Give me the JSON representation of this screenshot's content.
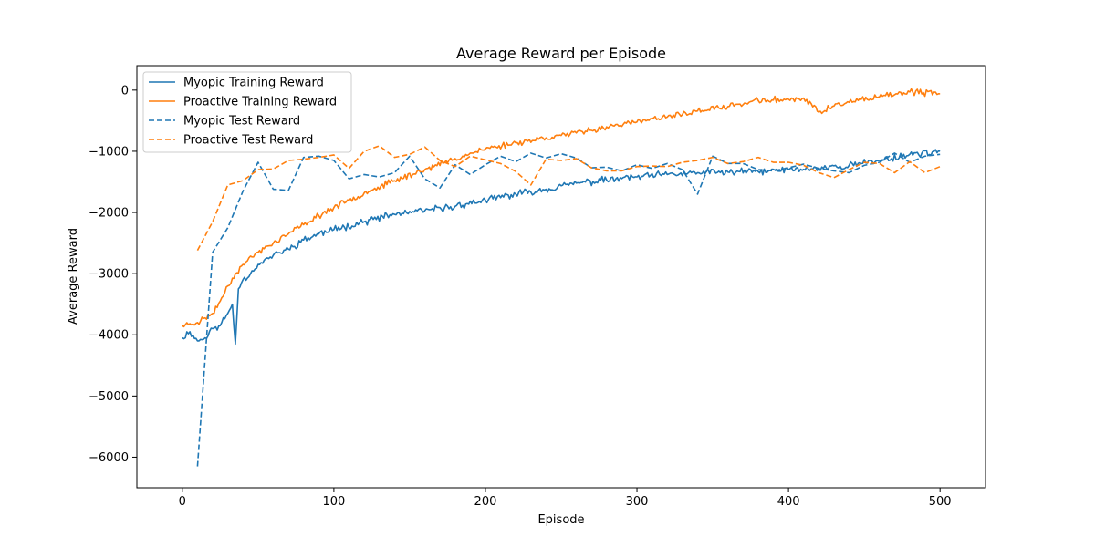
{
  "chart_data": {
    "type": "line",
    "title": "Average Reward per Episode",
    "xlabel": "Episode",
    "ylabel": "Average Reward",
    "xlim": [
      -30,
      530
    ],
    "ylim": [
      -6500,
      400
    ],
    "xticks": [
      0,
      100,
      200,
      300,
      400,
      500
    ],
    "yticks": [
      -6000,
      -5000,
      -4000,
      -3000,
      -2000,
      -1000,
      0
    ],
    "ytick_labels": [
      "−6000",
      "−5000",
      "−4000",
      "−3000",
      "−2000",
      "−1000",
      "0"
    ],
    "grid": false,
    "legend_position": "top-left",
    "series": [
      {
        "name": "Myopic Training Reward",
        "color": "#1f77b4",
        "dash": "solid",
        "kind": "train",
        "noise": 70,
        "seed": 11,
        "points": [
          [
            0,
            -4050
          ],
          [
            5,
            -3950
          ],
          [
            10,
            -4100
          ],
          [
            15,
            -4050
          ],
          [
            20,
            -3900
          ],
          [
            25,
            -3850
          ],
          [
            30,
            -3650
          ],
          [
            33,
            -3500
          ],
          [
            35,
            -4150
          ],
          [
            37,
            -3250
          ],
          [
            40,
            -3100
          ],
          [
            45,
            -3000
          ],
          [
            50,
            -2850
          ],
          [
            60,
            -2700
          ],
          [
            70,
            -2600
          ],
          [
            80,
            -2450
          ],
          [
            90,
            -2350
          ],
          [
            100,
            -2280
          ],
          [
            120,
            -2150
          ],
          [
            140,
            -2030
          ],
          [
            160,
            -1970
          ],
          [
            180,
            -1900
          ],
          [
            200,
            -1800
          ],
          [
            220,
            -1700
          ],
          [
            240,
            -1620
          ],
          [
            260,
            -1520
          ],
          [
            280,
            -1470
          ],
          [
            300,
            -1420
          ],
          [
            320,
            -1380
          ],
          [
            340,
            -1350
          ],
          [
            360,
            -1340
          ],
          [
            380,
            -1330
          ],
          [
            400,
            -1300
          ],
          [
            420,
            -1280
          ],
          [
            440,
            -1230
          ],
          [
            460,
            -1150
          ],
          [
            480,
            -1050
          ],
          [
            500,
            -1000
          ]
        ]
      },
      {
        "name": "Proactive Training Reward",
        "color": "#ff7f0e",
        "dash": "solid",
        "kind": "train",
        "noise": 60,
        "seed": 23,
        "points": [
          [
            0,
            -3850
          ],
          [
            10,
            -3800
          ],
          [
            20,
            -3650
          ],
          [
            25,
            -3450
          ],
          [
            30,
            -3200
          ],
          [
            35,
            -3000
          ],
          [
            40,
            -2850
          ],
          [
            50,
            -2650
          ],
          [
            60,
            -2500
          ],
          [
            70,
            -2350
          ],
          [
            80,
            -2200
          ],
          [
            90,
            -2050
          ],
          [
            100,
            -1920
          ],
          [
            120,
            -1680
          ],
          [
            140,
            -1480
          ],
          [
            160,
            -1300
          ],
          [
            180,
            -1120
          ],
          [
            200,
            -960
          ],
          [
            220,
            -860
          ],
          [
            240,
            -780
          ],
          [
            260,
            -700
          ],
          [
            280,
            -600
          ],
          [
            300,
            -520
          ],
          [
            320,
            -440
          ],
          [
            340,
            -340
          ],
          [
            360,
            -270
          ],
          [
            380,
            -170
          ],
          [
            400,
            -150
          ],
          [
            410,
            -130
          ],
          [
            420,
            -360
          ],
          [
            430,
            -260
          ],
          [
            440,
            -200
          ],
          [
            460,
            -110
          ],
          [
            480,
            -30
          ],
          [
            500,
            -60
          ]
        ]
      },
      {
        "name": "Myopic Test Reward",
        "color": "#1f77b4",
        "dash": "dashed",
        "kind": "test",
        "points": [
          [
            10,
            -6150
          ],
          [
            20,
            -2650
          ],
          [
            30,
            -2250
          ],
          [
            40,
            -1650
          ],
          [
            50,
            -1180
          ],
          [
            60,
            -1620
          ],
          [
            70,
            -1640
          ],
          [
            80,
            -1100
          ],
          [
            90,
            -1080
          ],
          [
            100,
            -1150
          ],
          [
            110,
            -1450
          ],
          [
            120,
            -1380
          ],
          [
            130,
            -1420
          ],
          [
            140,
            -1350
          ],
          [
            150,
            -1080
          ],
          [
            160,
            -1450
          ],
          [
            170,
            -1600
          ],
          [
            180,
            -1220
          ],
          [
            190,
            -1380
          ],
          [
            200,
            -1220
          ],
          [
            210,
            -1080
          ],
          [
            220,
            -1170
          ],
          [
            230,
            -1030
          ],
          [
            240,
            -1110
          ],
          [
            250,
            -1040
          ],
          [
            260,
            -1110
          ],
          [
            270,
            -1270
          ],
          [
            280,
            -1260
          ],
          [
            290,
            -1320
          ],
          [
            300,
            -1220
          ],
          [
            310,
            -1280
          ],
          [
            320,
            -1200
          ],
          [
            330,
            -1300
          ],
          [
            340,
            -1700
          ],
          [
            350,
            -1080
          ],
          [
            360,
            -1200
          ],
          [
            370,
            -1200
          ],
          [
            380,
            -1300
          ],
          [
            390,
            -1320
          ],
          [
            400,
            -1270
          ],
          [
            410,
            -1210
          ],
          [
            420,
            -1280
          ],
          [
            430,
            -1320
          ],
          [
            440,
            -1350
          ],
          [
            450,
            -1230
          ],
          [
            460,
            -1180
          ],
          [
            470,
            -1030
          ],
          [
            480,
            -1180
          ],
          [
            490,
            -1080
          ],
          [
            500,
            -1050
          ]
        ]
      },
      {
        "name": "Proactive Test Reward",
        "color": "#ff7f0e",
        "dash": "dashed",
        "kind": "test",
        "points": [
          [
            10,
            -2620
          ],
          [
            20,
            -2150
          ],
          [
            30,
            -1550
          ],
          [
            40,
            -1480
          ],
          [
            50,
            -1300
          ],
          [
            60,
            -1290
          ],
          [
            70,
            -1150
          ],
          [
            80,
            -1130
          ],
          [
            90,
            -1100
          ],
          [
            100,
            -1060
          ],
          [
            110,
            -1280
          ],
          [
            120,
            -1000
          ],
          [
            130,
            -910
          ],
          [
            140,
            -1100
          ],
          [
            150,
            -1050
          ],
          [
            160,
            -930
          ],
          [
            170,
            -1150
          ],
          [
            180,
            -1250
          ],
          [
            190,
            -1080
          ],
          [
            200,
            -1140
          ],
          [
            210,
            -1200
          ],
          [
            220,
            -1330
          ],
          [
            230,
            -1550
          ],
          [
            240,
            -1130
          ],
          [
            250,
            -1150
          ],
          [
            260,
            -1120
          ],
          [
            270,
            -1270
          ],
          [
            280,
            -1320
          ],
          [
            290,
            -1320
          ],
          [
            300,
            -1250
          ],
          [
            310,
            -1240
          ],
          [
            320,
            -1250
          ],
          [
            330,
            -1180
          ],
          [
            340,
            -1150
          ],
          [
            350,
            -1100
          ],
          [
            360,
            -1200
          ],
          [
            370,
            -1170
          ],
          [
            380,
            -1100
          ],
          [
            390,
            -1180
          ],
          [
            400,
            -1180
          ],
          [
            410,
            -1230
          ],
          [
            420,
            -1350
          ],
          [
            430,
            -1430
          ],
          [
            440,
            -1300
          ],
          [
            450,
            -1180
          ],
          [
            460,
            -1200
          ],
          [
            470,
            -1350
          ],
          [
            480,
            -1170
          ],
          [
            490,
            -1350
          ],
          [
            500,
            -1250
          ]
        ]
      }
    ]
  }
}
